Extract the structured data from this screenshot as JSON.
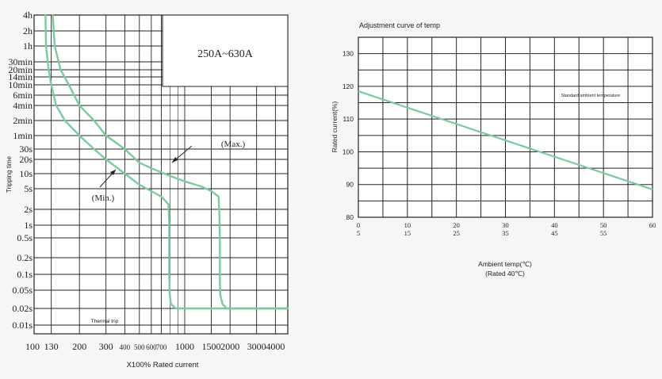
{
  "chart_data": [
    {
      "type": "line",
      "title": "",
      "range_label": "250A~630A",
      "xlabel": "X100%  Rated current",
      "ylabel": "Tripping time",
      "x_scale": "log",
      "y_scale": "log",
      "xlim": [
        100,
        5000
      ],
      "x_ticks": [
        100,
        130,
        200,
        300,
        400,
        500,
        600,
        700,
        1000,
        1500,
        2000,
        3000,
        4000
      ],
      "x_tick_labels": [
        "100",
        "130",
        "200",
        "300",
        "400",
        "500",
        "600",
        "700",
        "1000",
        "1500",
        "2000",
        "3000",
        "4000"
      ],
      "y_ticks_labels": [
        "4h",
        "2h",
        "1h",
        "30min",
        "20min",
        "14min",
        "10min",
        "6min",
        "4min",
        "2min",
        "1min",
        "30s",
        "20s",
        "10s",
        "5s",
        "2s",
        "1s",
        "0.5s",
        "0.2s",
        "0.1s",
        "0.05s",
        "0.02s",
        "0.01s"
      ],
      "y_ticks_seconds": [
        14400,
        7200,
        3600,
        1800,
        1200,
        840,
        600,
        360,
        240,
        120,
        60,
        30,
        20,
        10,
        5,
        2,
        1,
        0.5,
        0.2,
        0.1,
        0.05,
        0.02,
        0.01
      ],
      "grid": true,
      "series": [
        {
          "name": "Max.",
          "points": [
            [
              133,
              14400
            ],
            [
              137,
              3600
            ],
            [
              150,
              1200
            ],
            [
              170,
              600
            ],
            [
              200,
              240
            ],
            [
              250,
              120
            ],
            [
              300,
              60
            ],
            [
              400,
              30
            ],
            [
              500,
              17
            ],
            [
              600,
              13
            ],
            [
              800,
              9
            ],
            [
              1000,
              7
            ],
            [
              1300,
              5.5
            ],
            [
              1500,
              4.5
            ],
            [
              1680,
              3.5
            ],
            [
              1700,
              1.5
            ],
            [
              1710,
              0.5
            ],
            [
              1710,
              0.08
            ],
            [
              1720,
              0.04
            ],
            [
              1780,
              0.025
            ],
            [
              1900,
              0.02
            ],
            [
              5000,
              0.02
            ]
          ]
        },
        {
          "name": "Min.",
          "points": [
            [
              119,
              14400
            ],
            [
              120,
              3600
            ],
            [
              125,
              1200
            ],
            [
              130,
              600
            ],
            [
              140,
              240
            ],
            [
              160,
              120
            ],
            [
              200,
              60
            ],
            [
              250,
              30
            ],
            [
              300,
              20
            ],
            [
              400,
              10
            ],
            [
              500,
              6
            ],
            [
              600,
              4.5
            ],
            [
              700,
              3.5
            ],
            [
              780,
              2.5
            ],
            [
              790,
              1
            ],
            [
              790,
              0.1
            ],
            [
              795,
              0.04
            ],
            [
              810,
              0.025
            ],
            [
              870,
              0.02
            ],
            [
              5000,
              0.02
            ]
          ]
        }
      ],
      "annotations": [
        "(Max.)",
        "(Min.)",
        "Thermal trip"
      ],
      "line_color": "#7ec8a0"
    },
    {
      "type": "line",
      "title": "Adjustment curve of temp",
      "xlabel": "Ambient temp(℃)",
      "xlabel2": "(Rated 40℃)",
      "ylabel": "Rated current(%)",
      "xlim": [
        0,
        60
      ],
      "ylim": [
        80,
        135
      ],
      "x_ticks": [
        0,
        10,
        20,
        30,
        40,
        50,
        60
      ],
      "x_tick_labels": [
        "0",
        "10",
        "20",
        "30",
        "40",
        "50",
        "60"
      ],
      "x_tick_labels_secondary": [
        "5",
        "15",
        "25",
        "35",
        "45",
        "55"
      ],
      "y_ticks": [
        80,
        90,
        100,
        110,
        120,
        130
      ],
      "grid": true,
      "series": [
        {
          "name": "",
          "x": [
            0,
            60
          ],
          "y": [
            118.5,
            88.5
          ]
        }
      ],
      "annotations": [
        "Standard ambient temperature"
      ],
      "line_color": "#7ec8a0"
    }
  ]
}
